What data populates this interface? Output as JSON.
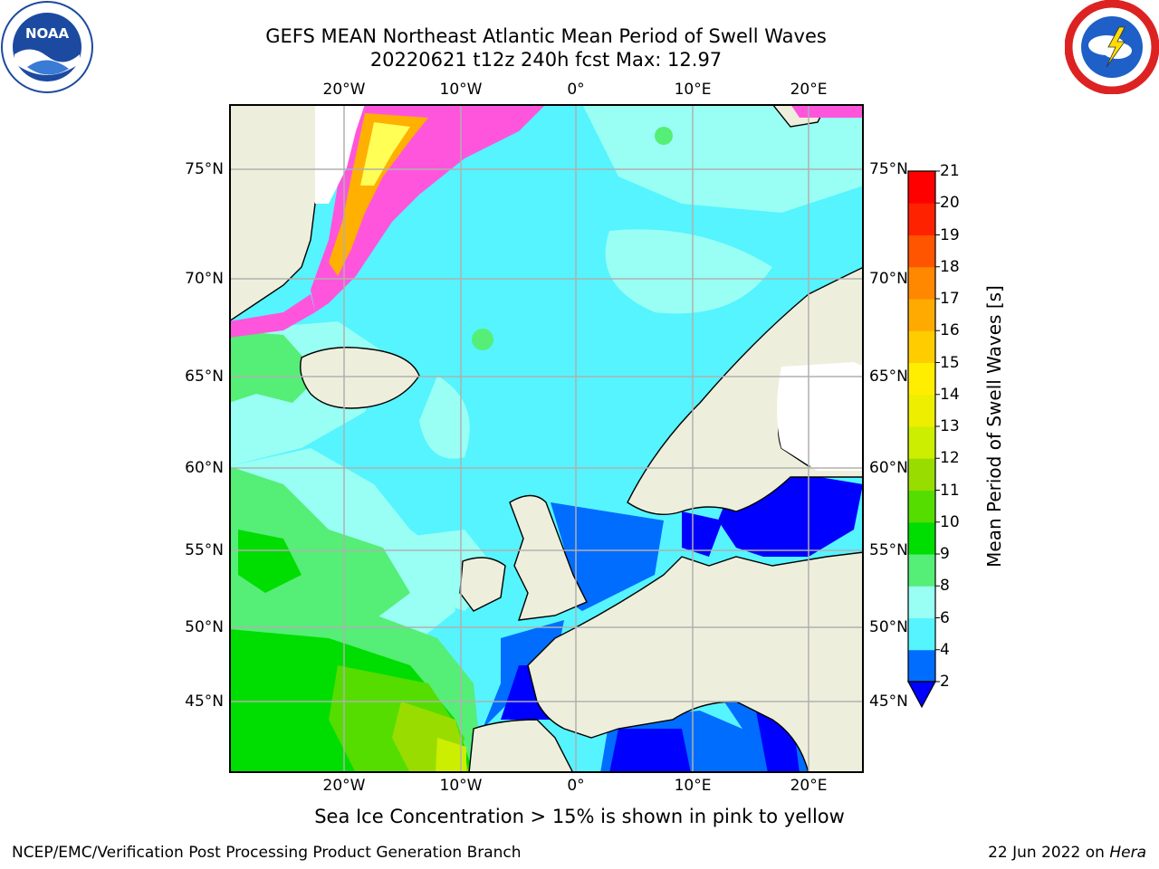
{
  "title": {
    "line1": "GEFS MEAN Northeast Atlantic Mean Period of Swell Waves",
    "line2": "20220621 t12z 240h fcst   Max: 12.97"
  },
  "logos": {
    "left": "noaa-logo",
    "right": "national-weather-service-logo"
  },
  "map": {
    "lon_ticks": [
      "20°W",
      "10°W",
      "0°",
      "10°E",
      "20°E"
    ],
    "lat_ticks": [
      "75°N",
      "70°N",
      "65°N",
      "60°N",
      "55°N",
      "50°N",
      "45°N"
    ],
    "extent": {
      "lon_min": -30,
      "lon_max": 24,
      "lat_min": 41,
      "lat_max": 78
    },
    "colors": {
      "land": "#eeeedc",
      "coast": "#000000",
      "grid": "#b0b0b0",
      "ice_pink": "#ff55dd",
      "ice_orange": "#ffb000",
      "ice_yellow": "#ffff55"
    }
  },
  "colorbar": {
    "label": "Mean Period of Swell Waves [s]",
    "ticks": [
      "2",
      "4",
      "6",
      "8",
      "9",
      "10",
      "11",
      "12",
      "13",
      "14",
      "15",
      "16",
      "17",
      "18",
      "19",
      "20",
      "21"
    ],
    "colors": [
      "#006dff",
      "#00e5ff",
      "#55f4ff",
      "#99fff4",
      "#55ee77",
      "#00dd00",
      "#55dd00",
      "#99dd00",
      "#ccee00",
      "#eeee00",
      "#ffee00",
      "#ffcc00",
      "#ffaa00",
      "#ff8800",
      "#ff5500",
      "#ff2200",
      "#ff0000"
    ],
    "under_color": "#0000ff"
  },
  "footer": {
    "note": "Sea Ice Concentration > 15% is shown in pink to yellow",
    "credit": "NCEP/EMC/Verification Post Processing Product Generation Branch",
    "date": "22 Jun 2022 on ",
    "machine": "Hera"
  }
}
